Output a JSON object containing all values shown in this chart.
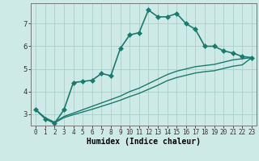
{
  "xlabel": "Humidex (Indice chaleur)",
  "background_color": "#ceeae6",
  "grid_color": "#aacfcb",
  "line_color": "#1a7a6e",
  "xlim": [
    -0.5,
    23.5
  ],
  "ylim": [
    2.5,
    7.9
  ],
  "yticks": [
    3,
    4,
    5,
    6,
    7
  ],
  "xticks": [
    0,
    1,
    2,
    3,
    4,
    5,
    6,
    7,
    8,
    9,
    10,
    11,
    12,
    13,
    14,
    15,
    16,
    17,
    18,
    19,
    20,
    21,
    22,
    23
  ],
  "series": [
    {
      "x": [
        0,
        1,
        2,
        3,
        4,
        5,
        6,
        7,
        8,
        9,
        10,
        11,
        12,
        13,
        14,
        15,
        16,
        17,
        18,
        19,
        20,
        21,
        22,
        23
      ],
      "y": [
        3.2,
        2.8,
        2.6,
        3.2,
        4.4,
        4.45,
        4.5,
        4.8,
        4.7,
        5.9,
        6.5,
        6.6,
        7.6,
        7.3,
        7.3,
        7.45,
        7.0,
        6.75,
        6.0,
        6.0,
        5.8,
        5.7,
        5.55,
        5.5
      ],
      "marker": "D",
      "markersize": 3,
      "lw": 1.2
    },
    {
      "x": [
        0,
        1,
        2,
        3,
        4,
        5,
        6,
        7,
        8,
        9,
        10,
        11,
        12,
        13,
        14,
        15,
        16,
        17,
        18,
        19,
        20,
        21,
        22,
        23
      ],
      "y": [
        3.2,
        2.85,
        2.65,
        2.9,
        3.05,
        3.2,
        3.35,
        3.5,
        3.65,
        3.8,
        4.0,
        4.15,
        4.35,
        4.55,
        4.75,
        4.9,
        5.0,
        5.1,
        5.15,
        5.2,
        5.3,
        5.4,
        5.45,
        5.5
      ],
      "marker": null,
      "markersize": 0,
      "lw": 1.0
    },
    {
      "x": [
        0,
        1,
        2,
        3,
        4,
        5,
        6,
        7,
        8,
        9,
        10,
        11,
        12,
        13,
        14,
        15,
        16,
        17,
        18,
        19,
        20,
        21,
        22,
        23
      ],
      "y": [
        3.2,
        2.82,
        2.62,
        2.85,
        2.98,
        3.1,
        3.22,
        3.35,
        3.48,
        3.62,
        3.78,
        3.92,
        4.1,
        4.28,
        4.48,
        4.62,
        4.72,
        4.82,
        4.88,
        4.92,
        5.02,
        5.12,
        5.18,
        5.5
      ],
      "marker": null,
      "markersize": 0,
      "lw": 1.0
    }
  ],
  "tick_fontsize": 5.5,
  "label_fontsize": 7
}
